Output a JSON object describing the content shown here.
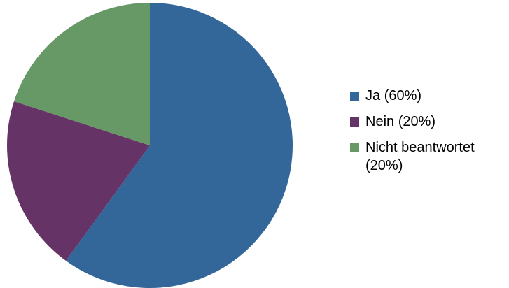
{
  "chart_data": {
    "type": "pie",
    "categories": [
      "Ja (60%)",
      "Nein (20%)",
      "Nicht beantwortet (20%)"
    ],
    "values": [
      60,
      20,
      20
    ],
    "colors": [
      "#336699",
      "#663366",
      "#669966"
    ],
    "legend": "right"
  }
}
